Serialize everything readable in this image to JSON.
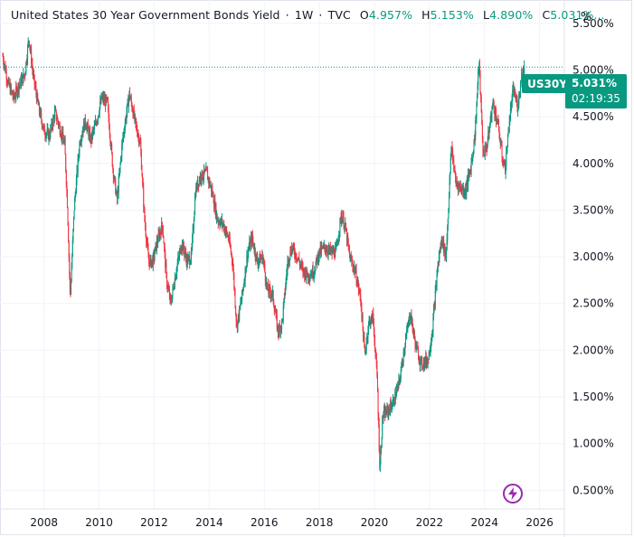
{
  "legend": {
    "title": "United States 30 Year Government Bonds Yield",
    "interval": "1W",
    "source": "TVC",
    "open_key": "O",
    "open": "4.957%",
    "high_key": "H",
    "high": "5.153%",
    "low_key": "L",
    "low": "4.890%",
    "close_key": "C",
    "close": "5.031%..."
  },
  "scale_mode": "%",
  "symbol_tag": "US30Y",
  "last_price": "5.031%",
  "countdown": "02:19:35",
  "colors": {
    "up": "#089981",
    "down": "#f23645",
    "accent": "#089981",
    "lightning": "#9c27b0"
  },
  "chart_data": {
    "type": "line",
    "series": [
      {
        "values": [
          {
            "x": 2006.5,
            "y": 5.15
          },
          {
            "x": 2006.7,
            "y": 4.85
          },
          {
            "x": 2006.9,
            "y": 4.7
          },
          {
            "x": 2007.1,
            "y": 4.85
          },
          {
            "x": 2007.3,
            "y": 4.95
          },
          {
            "x": 2007.45,
            "y": 5.35
          },
          {
            "x": 2007.6,
            "y": 4.95
          },
          {
            "x": 2007.8,
            "y": 4.6
          },
          {
            "x": 2008.0,
            "y": 4.35
          },
          {
            "x": 2008.2,
            "y": 4.3
          },
          {
            "x": 2008.4,
            "y": 4.55
          },
          {
            "x": 2008.6,
            "y": 4.35
          },
          {
            "x": 2008.75,
            "y": 4.2
          },
          {
            "x": 2008.85,
            "y": 3.55
          },
          {
            "x": 2008.95,
            "y": 2.55
          },
          {
            "x": 2009.1,
            "y": 3.55
          },
          {
            "x": 2009.3,
            "y": 4.25
          },
          {
            "x": 2009.5,
            "y": 4.45
          },
          {
            "x": 2009.7,
            "y": 4.25
          },
          {
            "x": 2009.9,
            "y": 4.45
          },
          {
            "x": 2010.1,
            "y": 4.7
          },
          {
            "x": 2010.3,
            "y": 4.65
          },
          {
            "x": 2010.5,
            "y": 3.95
          },
          {
            "x": 2010.65,
            "y": 3.6
          },
          {
            "x": 2010.85,
            "y": 4.25
          },
          {
            "x": 2011.1,
            "y": 4.75
          },
          {
            "x": 2011.3,
            "y": 4.45
          },
          {
            "x": 2011.5,
            "y": 4.2
          },
          {
            "x": 2011.65,
            "y": 3.4
          },
          {
            "x": 2011.8,
            "y": 2.95
          },
          {
            "x": 2011.95,
            "y": 2.95
          },
          {
            "x": 2012.1,
            "y": 3.15
          },
          {
            "x": 2012.3,
            "y": 3.35
          },
          {
            "x": 2012.45,
            "y": 2.75
          },
          {
            "x": 2012.6,
            "y": 2.5
          },
          {
            "x": 2012.8,
            "y": 2.85
          },
          {
            "x": 2013.0,
            "y": 3.15
          },
          {
            "x": 2013.2,
            "y": 2.95
          },
          {
            "x": 2013.35,
            "y": 3.0
          },
          {
            "x": 2013.5,
            "y": 3.7
          },
          {
            "x": 2013.65,
            "y": 3.85
          },
          {
            "x": 2013.9,
            "y": 3.9
          },
          {
            "x": 2014.1,
            "y": 3.7
          },
          {
            "x": 2014.3,
            "y": 3.4
          },
          {
            "x": 2014.5,
            "y": 3.35
          },
          {
            "x": 2014.7,
            "y": 3.2
          },
          {
            "x": 2014.85,
            "y": 2.95
          },
          {
            "x": 2015.0,
            "y": 2.25
          },
          {
            "x": 2015.2,
            "y": 2.6
          },
          {
            "x": 2015.4,
            "y": 3.05
          },
          {
            "x": 2015.55,
            "y": 3.2
          },
          {
            "x": 2015.75,
            "y": 2.95
          },
          {
            "x": 2015.95,
            "y": 3.0
          },
          {
            "x": 2016.1,
            "y": 2.65
          },
          {
            "x": 2016.3,
            "y": 2.6
          },
          {
            "x": 2016.5,
            "y": 2.2
          },
          {
            "x": 2016.65,
            "y": 2.3
          },
          {
            "x": 2016.85,
            "y": 2.95
          },
          {
            "x": 2017.0,
            "y": 3.1
          },
          {
            "x": 2017.2,
            "y": 3.0
          },
          {
            "x": 2017.4,
            "y": 2.85
          },
          {
            "x": 2017.6,
            "y": 2.8
          },
          {
            "x": 2017.8,
            "y": 2.85
          },
          {
            "x": 2018.0,
            "y": 3.05
          },
          {
            "x": 2018.2,
            "y": 3.1
          },
          {
            "x": 2018.4,
            "y": 3.05
          },
          {
            "x": 2018.6,
            "y": 3.05
          },
          {
            "x": 2018.8,
            "y": 3.45
          },
          {
            "x": 2018.95,
            "y": 3.3
          },
          {
            "x": 2019.1,
            "y": 3.0
          },
          {
            "x": 2019.3,
            "y": 2.85
          },
          {
            "x": 2019.5,
            "y": 2.55
          },
          {
            "x": 2019.65,
            "y": 1.95
          },
          {
            "x": 2019.8,
            "y": 2.3
          },
          {
            "x": 2019.95,
            "y": 2.35
          },
          {
            "x": 2020.1,
            "y": 1.7
          },
          {
            "x": 2020.2,
            "y": 0.72
          },
          {
            "x": 2020.3,
            "y": 1.3
          },
          {
            "x": 2020.5,
            "y": 1.35
          },
          {
            "x": 2020.7,
            "y": 1.45
          },
          {
            "x": 2020.9,
            "y": 1.65
          },
          {
            "x": 2021.1,
            "y": 2.05
          },
          {
            "x": 2021.3,
            "y": 2.4
          },
          {
            "x": 2021.5,
            "y": 2.05
          },
          {
            "x": 2021.7,
            "y": 1.85
          },
          {
            "x": 2021.95,
            "y": 1.9
          },
          {
            "x": 2022.1,
            "y": 2.2
          },
          {
            "x": 2022.3,
            "y": 2.9
          },
          {
            "x": 2022.45,
            "y": 3.2
          },
          {
            "x": 2022.6,
            "y": 3.0
          },
          {
            "x": 2022.8,
            "y": 4.2
          },
          {
            "x": 2022.95,
            "y": 3.8
          },
          {
            "x": 2023.1,
            "y": 3.75
          },
          {
            "x": 2023.3,
            "y": 3.7
          },
          {
            "x": 2023.5,
            "y": 3.95
          },
          {
            "x": 2023.65,
            "y": 4.3
          },
          {
            "x": 2023.8,
            "y": 5.1
          },
          {
            "x": 2023.95,
            "y": 4.1
          },
          {
            "x": 2024.1,
            "y": 4.2
          },
          {
            "x": 2024.3,
            "y": 4.65
          },
          {
            "x": 2024.5,
            "y": 4.4
          },
          {
            "x": 2024.65,
            "y": 4.05
          },
          {
            "x": 2024.75,
            "y": 3.95
          },
          {
            "x": 2024.9,
            "y": 4.45
          },
          {
            "x": 2025.05,
            "y": 4.8
          },
          {
            "x": 2025.2,
            "y": 4.6
          },
          {
            "x": 2025.35,
            "y": 4.95
          },
          {
            "x": 2025.45,
            "y": 5.031
          }
        ]
      }
    ],
    "xlim": [
      2006.4,
      2026.9
    ],
    "ylim": [
      0.3,
      5.75
    ],
    "yticks": [
      "5.500%",
      "5.000%",
      "4.500%",
      "4.000%",
      "3.500%",
      "3.000%",
      "2.500%",
      "2.000%",
      "1.500%",
      "1.000%",
      "0.500%"
    ],
    "ytick_values": [
      5.5,
      5.0,
      4.5,
      4.0,
      3.5,
      3.0,
      2.5,
      2.0,
      1.5,
      1.0,
      0.5
    ],
    "xticks": [
      "2008",
      "2010",
      "2012",
      "2014",
      "2016",
      "2018",
      "2020",
      "2022",
      "2024",
      "2026"
    ],
    "xtick_values": [
      2008,
      2010,
      2012,
      2014,
      2016,
      2018,
      2020,
      2022,
      2024,
      2026
    ],
    "last_value": 5.031,
    "grid": true
  }
}
